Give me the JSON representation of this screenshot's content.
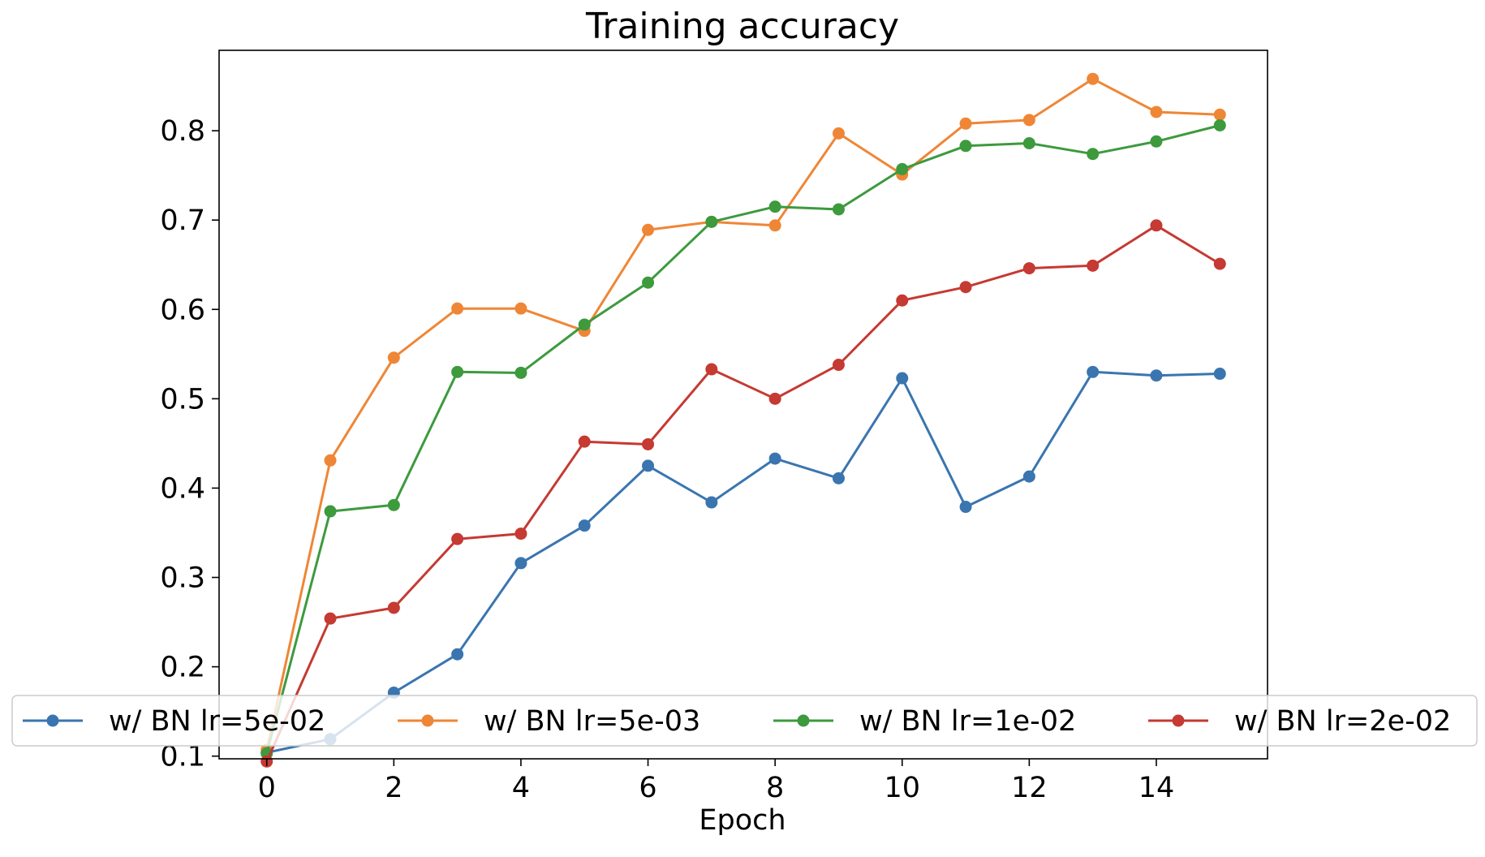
{
  "chart_data": {
    "type": "line",
    "title": "Training accuracy",
    "xlabel": "Epoch",
    "ylabel": "",
    "xlim": [
      -0.75,
      15.75
    ],
    "ylim": [
      0.097,
      0.89
    ],
    "xticks": [
      0,
      2,
      4,
      6,
      8,
      10,
      12,
      14
    ],
    "yticks": [
      0.1,
      0.2,
      0.3,
      0.4,
      0.5,
      0.6,
      0.7,
      0.8
    ],
    "ytick_labels": [
      "0.1",
      "0.2",
      "0.3",
      "0.4",
      "0.5",
      "0.6",
      "0.7",
      "0.8"
    ],
    "grid": false,
    "legend_position": "lower center (overlapping bottom of plot)",
    "x": [
      0,
      1,
      2,
      3,
      4,
      5,
      6,
      7,
      8,
      9,
      10,
      11,
      12,
      13,
      14,
      15
    ],
    "series": [
      {
        "name": "w/ BN lr=5e-02",
        "color": "#3a75b0",
        "values": [
          0.104,
          0.119,
          0.171,
          0.214,
          0.316,
          0.358,
          0.425,
          0.384,
          0.433,
          0.411,
          0.523,
          0.379,
          0.413,
          0.53,
          0.526,
          0.528
        ]
      },
      {
        "name": "w/ BN lr=5e-03",
        "color": "#ef8636",
        "values": [
          0.107,
          0.431,
          0.546,
          0.601,
          0.601,
          0.576,
          0.689,
          0.698,
          0.694,
          0.797,
          0.751,
          0.808,
          0.812,
          0.858,
          0.821,
          0.818
        ]
      },
      {
        "name": "w/ BN lr=1e-02",
        "color": "#3d9a3d",
        "values": [
          0.103,
          0.374,
          0.381,
          0.53,
          0.529,
          0.583,
          0.63,
          0.698,
          0.715,
          0.712,
          0.757,
          0.783,
          0.786,
          0.774,
          0.788,
          0.806
        ]
      },
      {
        "name": "w/ BN lr=2e-02",
        "color": "#c53a32",
        "values": [
          0.094,
          0.254,
          0.266,
          0.343,
          0.349,
          0.452,
          0.449,
          0.533,
          0.5,
          0.538,
          0.61,
          0.625,
          0.646,
          0.649,
          0.694,
          0.651
        ]
      }
    ]
  }
}
